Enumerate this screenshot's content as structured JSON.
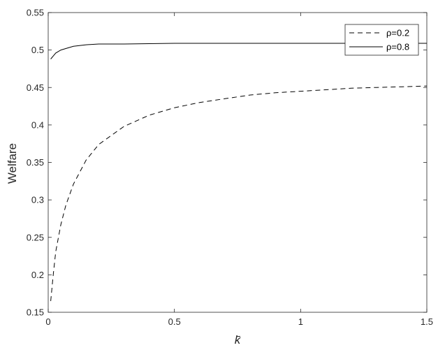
{
  "chart_data": {
    "type": "line",
    "xlabel": "k̄",
    "ylabel": "Welfare",
    "xlim": [
      0,
      1.5
    ],
    "ylim": [
      0.15,
      0.55
    ],
    "xticks": [
      0,
      0.5,
      1,
      1.5
    ],
    "xtick_labels": [
      "0",
      "0.5",
      "1",
      "1.5"
    ],
    "yticks": [
      0.15,
      0.2,
      0.25,
      0.3,
      0.35,
      0.4,
      0.45,
      0.5,
      0.55
    ],
    "ytick_labels": [
      "0.15",
      "0.2",
      "0.25",
      "0.3",
      "0.35",
      "0.4",
      "0.45",
      "0.5",
      "0.55"
    ],
    "grid": false,
    "legend_position": "top-right",
    "series": [
      {
        "name": "ρ=0.2",
        "style": "dashed",
        "color": "#000000",
        "x": [
          0.01,
          0.02,
          0.03,
          0.05,
          0.07,
          0.1,
          0.15,
          0.2,
          0.3,
          0.4,
          0.5,
          0.6,
          0.7,
          0.8,
          0.9,
          1.0,
          1.1,
          1.2,
          1.3,
          1.4,
          1.5
        ],
        "y": [
          0.165,
          0.2,
          0.231,
          0.267,
          0.293,
          0.321,
          0.353,
          0.374,
          0.398,
          0.413,
          0.423,
          0.43,
          0.435,
          0.44,
          0.443,
          0.445,
          0.447,
          0.449,
          0.45,
          0.451,
          0.452
        ]
      },
      {
        "name": "ρ=0.8",
        "style": "solid",
        "color": "#000000",
        "x": [
          0.01,
          0.02,
          0.03,
          0.05,
          0.08,
          0.1,
          0.15,
          0.2,
          0.3,
          0.5,
          0.75,
          1.0,
          1.25,
          1.5
        ],
        "y": [
          0.488,
          0.492,
          0.496,
          0.5,
          0.503,
          0.505,
          0.507,
          0.508,
          0.508,
          0.509,
          0.509,
          0.509,
          0.509,
          0.509
        ]
      }
    ]
  }
}
